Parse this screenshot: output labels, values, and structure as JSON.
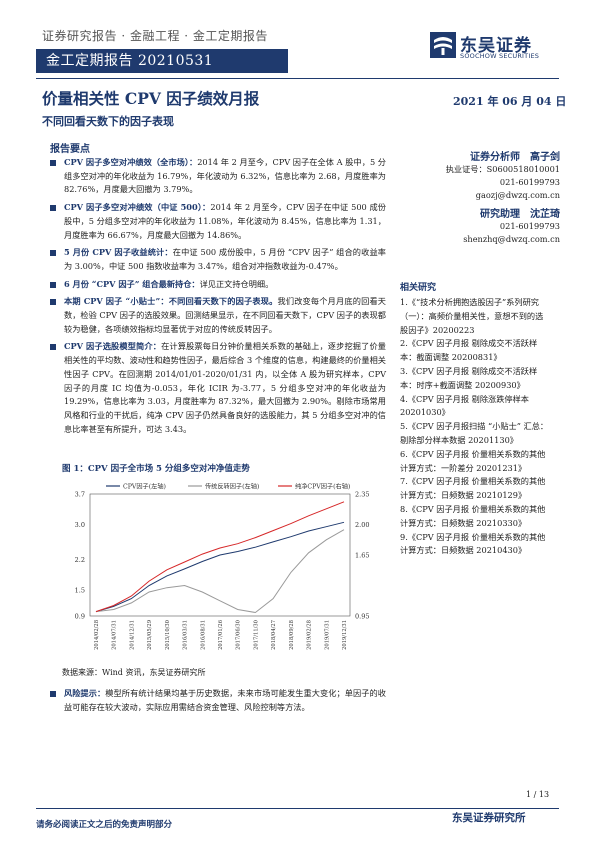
{
  "header": {
    "breadcrumb": "证券研究报告 · 金融工程 · 金工定期报告",
    "report_bar": "金工定期报告 20210531",
    "logo_cn": "东吴证券",
    "logo_en": "SOOCHOW SECURITIES"
  },
  "title": "价量相关性 CPV 因子绩效月报",
  "date": "2021 年 06 月 04 日",
  "subtitle": "不同回看天数下的因子表现",
  "section_head": "报告要点",
  "bullets": [
    {
      "lead": "CPV 因子多空对冲绩效（全市场）：",
      "text": "2014 年 2 月至今，CPV 因子在全体 A 股中，5 分组多空对冲的年化收益为 16.79%，年化波动为 6.32%，信息比率为 2.68，月度胜率为 82.76%，月度最大回撤为 3.79%。"
    },
    {
      "lead": "CPV 因子多空对冲绩效（中证 500）：",
      "text": "2014 年 2 月至今，CPV 因子在中证 500 成份股中，5 分组多空对冲的年化收益为 11.08%，年化波动为 8.45%，信息比率为 1.31，月度胜率为 66.67%，月度最大回撤为 14.86%。"
    },
    {
      "lead": "5 月份 CPV 因子收益统计：",
      "text": "在中证 500 成份股中，5 月份 “CPV 因子” 组合的收益率为 3.00%，中证 500 指数收益率为 3.47%，组合对冲指数收益为-0.47%。"
    },
    {
      "lead": "6 月份 “CPV 因子” 组合最新持仓：",
      "text": "详见正文持仓明细。"
    },
    {
      "lead": "本期 CPV 因子 “小贴士”：不同回看天数下的因子表现。",
      "text": "我们改变每个月月底的回看天数，检验 CPV 因子的选股效果。回测结果显示，在不同回看天数下，CPV 因子的表现都较为稳健，各项绩效指标均显著优于对应的传统反转因子。"
    },
    {
      "lead": "CPV 因子选股模型简介：",
      "text": "在计算股票每日分钟价量相关系数的基础上，逐步挖掘了价量相关性的平均数、波动性和趋势性因子，最后综合 3 个维度的信息，构建最终的价量相关性因子 CPV。在回测期 2014/01/01-2020/01/31 内，以全体 A 股为研究样本，CPV 因子的月度 IC 均值为-0.053，年化 ICIR 为-3.77，5 分组多空对冲的年化收益为 19.29%，信息比率为 3.03，月度胜率为 87.32%，最大回撤为 2.90%。剔除市场常用风格和行业的干扰后，纯净 CPV 因子仍然具备良好的选股能力，其 5 分组多空对冲的信息比率甚至有所提升，可达 3.43。"
    }
  ],
  "figure": {
    "title": "图 1：CPV 因子全市场 5 分组多空对冲净值走势",
    "source": "数据来源：Wind 资讯，东吴证券研究所"
  },
  "chart_data": {
    "type": "line",
    "title": "",
    "legend": [
      "CPV因子(左轴)",
      "传统反转因子(左轴)",
      "纯净CPV因子(右轴)"
    ],
    "legend_position": "top",
    "x": [
      "2014/02/28",
      "2014/07/31",
      "2014/12/31",
      "2015/05/29",
      "2015/10/30",
      "2016/03/31",
      "2016/08/31",
      "2017/01/26",
      "2017/06/30",
      "2017/11/30",
      "2018/04/27",
      "2018/09/28",
      "2019/02/28",
      "2019/07/31",
      "2019/12/31"
    ],
    "left_axis": {
      "ticks": [
        "0.9",
        "1.5",
        "2.2",
        "3.0",
        "3.7"
      ],
      "ylim": [
        0.9,
        3.7
      ]
    },
    "right_axis": {
      "ticks": [
        "0.95",
        "1.65",
        "2.00",
        "2.35"
      ],
      "ylim": [
        0.95,
        2.35
      ]
    },
    "series": [
      {
        "name": "CPV因子(左轴)",
        "axis": "left",
        "color": "#1f3a6e",
        "values": [
          1.0,
          1.12,
          1.3,
          1.6,
          1.82,
          1.98,
          2.15,
          2.3,
          2.38,
          2.48,
          2.6,
          2.72,
          2.85,
          2.95,
          3.05
        ]
      },
      {
        "name": "传统反转因子(左轴)",
        "axis": "left",
        "color": "#9a9a9a",
        "values": [
          1.0,
          1.05,
          1.2,
          1.45,
          1.55,
          1.6,
          1.45,
          1.25,
          1.05,
          0.98,
          1.3,
          1.9,
          2.35,
          2.65,
          2.88
        ]
      },
      {
        "name": "纯净CPV因子(右轴)",
        "axis": "right",
        "color": "#d62728",
        "values": [
          1.0,
          1.07,
          1.18,
          1.35,
          1.48,
          1.57,
          1.66,
          1.73,
          1.78,
          1.85,
          1.93,
          2.01,
          2.1,
          2.18,
          2.26
        ]
      }
    ],
    "grid": false
  },
  "risk": {
    "lead": "风险提示：",
    "text": "模型所有统计结果均基于历史数据，未来市场可能发生重大变化；单因子的收益可能存在较大波动，实际应用需结合资金管理、风险控制等方法。"
  },
  "analyst": {
    "title": "证券分析师　高子剑",
    "cert": "执业证号：S0600518010001",
    "phone": "021-60199793",
    "email": "gaozj@dwzq.com.cn"
  },
  "assistant": {
    "title": "研究助理　沈芷琦",
    "phone": "021-60199793",
    "email": "shenzhq@dwzq.com.cn"
  },
  "related": {
    "head": "相关研究",
    "items": [
      "1.《“技术分析拥抱选股因子”系列研究（一）：高频价量相关性，意想不到的选股因子》20200223",
      "2.《CPV 因子月报 剔除成交不活跃样本：截面调整 20200831》",
      "3.《CPV 因子月报 剔除成交不活跃样本：时序+截面调整 20200930》",
      "4.《CPV 因子月报 剔除涨跌停样本 20201030》",
      "5.《CPV 因子月报扫描 “小贴士” 汇总：剔除部分样本数据 20201130》",
      "6.《CPV 因子月报 价量相关系数的其他计算方式：一阶差分 20201231》",
      "7.《CPV 因子月报 价量相关系数的其他计算方式：日频数据 20210129》",
      "8.《CPV 因子月报 价量相关系数的其他计算方式：日频数据 20210330》",
      "9.《CPV 因子月报 价量相关系数的其他计算方式：日频数据 20210430》"
    ]
  },
  "footer": {
    "page": "1 / 13",
    "org": "东吴证券研究所",
    "disclaimer": "请务必阅读正文之后的免责声明部分"
  }
}
